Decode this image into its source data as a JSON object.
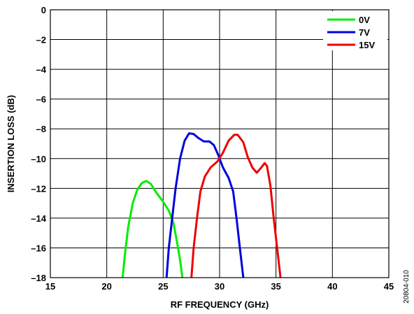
{
  "chart_data": {
    "type": "line",
    "xlabel": "RF FREQUENCY (GHz)",
    "ylabel": "INSERTION LOSS (dB)",
    "xlim": [
      15,
      45
    ],
    "ylim": [
      -18,
      0
    ],
    "xticks": [
      15,
      20,
      25,
      30,
      35,
      40,
      45
    ],
    "xtick_labels": [
      "15",
      "20",
      "25",
      "30",
      "35",
      "40",
      "45"
    ],
    "yticks": [
      0,
      -2,
      -4,
      -6,
      -8,
      -10,
      -12,
      -14,
      -16,
      -18
    ],
    "ytick_labels": [
      "0",
      "–2",
      "–4",
      "–6",
      "–8",
      "–10",
      "–12",
      "–14",
      "–16",
      "–18"
    ],
    "grid": true,
    "legend_position": "top-right",
    "series": [
      {
        "name": "0V",
        "color": "#00ee00",
        "points": [
          [
            21.4,
            -18
          ],
          [
            21.6,
            -16.5
          ],
          [
            21.9,
            -14.6
          ],
          [
            22.3,
            -13.0
          ],
          [
            22.7,
            -12.1
          ],
          [
            23.1,
            -11.65
          ],
          [
            23.5,
            -11.5
          ],
          [
            23.9,
            -11.7
          ],
          [
            24.4,
            -12.3
          ],
          [
            25.0,
            -12.9
          ],
          [
            25.5,
            -13.5
          ],
          [
            25.9,
            -14.3
          ],
          [
            26.2,
            -15.5
          ],
          [
            26.5,
            -16.8
          ],
          [
            26.7,
            -18
          ]
        ]
      },
      {
        "name": "7V",
        "color": "#0000dd",
        "points": [
          [
            25.3,
            -18
          ],
          [
            25.5,
            -16
          ],
          [
            25.8,
            -14
          ],
          [
            26.1,
            -12
          ],
          [
            26.5,
            -10
          ],
          [
            26.9,
            -8.8
          ],
          [
            27.3,
            -8.3
          ],
          [
            27.7,
            -8.35
          ],
          [
            28.1,
            -8.6
          ],
          [
            28.6,
            -8.85
          ],
          [
            29.1,
            -8.85
          ],
          [
            29.5,
            -9.1
          ],
          [
            29.9,
            -9.8
          ],
          [
            30.3,
            -10.6
          ],
          [
            30.8,
            -11.3
          ],
          [
            31.2,
            -12.2
          ],
          [
            31.5,
            -14
          ],
          [
            31.8,
            -16
          ],
          [
            32.1,
            -18
          ]
        ]
      },
      {
        "name": "15V",
        "color": "#ee0000",
        "points": [
          [
            27.5,
            -18
          ],
          [
            27.7,
            -16
          ],
          [
            28.0,
            -14
          ],
          [
            28.3,
            -12.2
          ],
          [
            28.7,
            -11.2
          ],
          [
            29.2,
            -10.6
          ],
          [
            29.8,
            -10.2
          ],
          [
            30.3,
            -9.6
          ],
          [
            30.8,
            -8.8
          ],
          [
            31.3,
            -8.4
          ],
          [
            31.6,
            -8.4
          ],
          [
            32.1,
            -8.9
          ],
          [
            32.5,
            -9.9
          ],
          [
            32.9,
            -10.6
          ],
          [
            33.3,
            -10.95
          ],
          [
            33.7,
            -10.6
          ],
          [
            34.0,
            -10.3
          ],
          [
            34.2,
            -10.5
          ],
          [
            34.5,
            -11.8
          ],
          [
            34.8,
            -14
          ],
          [
            35.1,
            -16
          ],
          [
            35.4,
            -18
          ]
        ]
      }
    ]
  },
  "figure_id": "20804-010"
}
